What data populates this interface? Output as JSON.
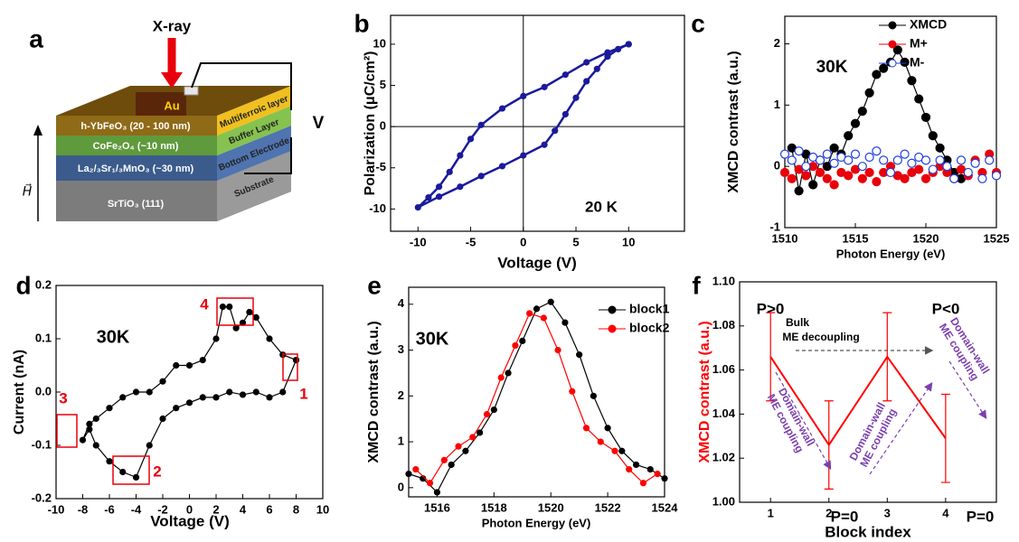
{
  "diagram": {
    "panel": "a",
    "xray": "X-ray",
    "pad": "Au",
    "voltage": "V",
    "field": "H⃗",
    "layers": [
      {
        "name": "h-YbFeO₃ (20 - 100 nm)",
        "role": "Multiferroic layer"
      },
      {
        "name": "CoFe₂O₄ (~10 nm)",
        "role": "Buffer Layer"
      },
      {
        "name": "La₂/₃Sr₁/₃MnO₃ (~30 nm)",
        "role": "Bottom Electrode"
      },
      {
        "name": "SrTiO₃ (111)",
        "role": "Substrate"
      }
    ]
  },
  "chart_data": [
    {
      "type": "line",
      "panel": "b",
      "xlabel": "Voltage (V)",
      "ylabel": "Polarization (μC/cm²)",
      "xlim": [
        -12.6,
        15.3
      ],
      "ylim": [
        -12.7,
        13.5
      ],
      "xticks": [
        -10,
        -5,
        0,
        5,
        10
      ],
      "yticks": [
        -10,
        -5,
        0,
        5,
        10
      ],
      "zero_lines": true,
      "annotations": [
        "20 K"
      ],
      "series": [
        {
          "name": "P-V loop",
          "color": "#1a1a9c",
          "marker": "filled",
          "connect": true,
          "x": [
            10,
            8,
            6,
            4,
            2,
            0,
            -2,
            -4,
            -5,
            -6,
            -7,
            -8,
            -9,
            -10,
            -8,
            -6,
            -4,
            -2,
            0,
            2,
            3,
            4,
            5,
            6,
            7,
            8,
            9,
            10
          ],
          "values": [
            10,
            9,
            7.8,
            6.3,
            4.8,
            3.7,
            2.2,
            0.2,
            -1.5,
            -3.5,
            -5.5,
            -7.3,
            -8.6,
            -9.8,
            -8.5,
            -7.3,
            -6,
            -4.8,
            -3.5,
            -2.2,
            -0.5,
            1.5,
            3.5,
            5.5,
            7,
            8.5,
            9.4,
            10
          ]
        }
      ]
    },
    {
      "type": "line",
      "panel": "c",
      "xlabel": "Photon Energy (eV)",
      "ylabel": "XMCD contrast (a.u.)",
      "xlim": [
        1510,
        1525
      ],
      "ylim": [
        -1,
        2.45
      ],
      "xticks": [
        1510,
        1515,
        1520,
        1525
      ],
      "yticks": [
        -1,
        0,
        1,
        2
      ],
      "legend": "upper right",
      "annotations": [
        "30K"
      ],
      "series": [
        {
          "name": "XMCD",
          "color": "#000000",
          "marker": "filled",
          "connect": true,
          "x": [
            1510.5,
            1511,
            1511.5,
            1512,
            1512.5,
            1513,
            1513.5,
            1514,
            1514.5,
            1515,
            1515.5,
            1516,
            1516.5,
            1517,
            1517.5,
            1518,
            1518.5,
            1519,
            1519.5,
            1520,
            1520.5,
            1521,
            1521.5,
            1522,
            1522.5
          ],
          "values": [
            0.3,
            -0.4,
            0.2,
            -0.3,
            0.1,
            0.0,
            0.3,
            0.2,
            0.5,
            0.7,
            0.9,
            1.2,
            1.5,
            1.6,
            1.7,
            1.9,
            1.7,
            1.4,
            1.1,
            0.8,
            0.5,
            0.3,
            0.1,
            -0.1,
            -0.2
          ]
        },
        {
          "name": "M+",
          "color": "#e8000b",
          "marker": "filled",
          "connect": false,
          "x": [
            1510,
            1510.5,
            1511,
            1511.5,
            1512,
            1512.5,
            1513,
            1513.5,
            1514,
            1514.5,
            1515,
            1515.5,
            1516,
            1516.5,
            1517,
            1517.5,
            1518,
            1518.5,
            1519,
            1519.5,
            1520,
            1520.5,
            1521,
            1521.5,
            1522,
            1522.5,
            1523,
            1523.5,
            1524,
            1524.5,
            1525
          ],
          "values": [
            -0.1,
            -0.2,
            -0.05,
            -0.15,
            0.0,
            -0.1,
            -0.2,
            -0.3,
            -0.1,
            -0.15,
            -0.05,
            -0.2,
            -0.1,
            -0.25,
            -0.1,
            0.0,
            -0.15,
            -0.2,
            -0.1,
            -0.05,
            -0.2,
            -0.1,
            0.0,
            -0.1,
            -0.2,
            -0.05,
            -0.15,
            0.1,
            -0.1,
            0.2,
            -0.1
          ]
        },
        {
          "name": "M-",
          "color": "#1f3fe0",
          "marker": "open",
          "connect": false,
          "x": [
            1510,
            1510.5,
            1511,
            1511.5,
            1512,
            1512.5,
            1513,
            1513.5,
            1514,
            1514.5,
            1515,
            1515.5,
            1516,
            1516.5,
            1517,
            1517.5,
            1518,
            1518.5,
            1519,
            1519.5,
            1520,
            1520.5,
            1521,
            1521.5,
            1522,
            1522.5,
            1523,
            1523.5,
            1524,
            1524.5,
            1525
          ],
          "values": [
            0.2,
            0.1,
            0.25,
            0.0,
            0.15,
            0.1,
            0.2,
            0.05,
            0.15,
            0.1,
            0.2,
            0.0,
            0.15,
            0.25,
            0.1,
            -0.1,
            0.1,
            0.2,
            0.05,
            0.15,
            0.1,
            -0.05,
            0.1,
            0.0,
            -0.2,
            0.1,
            -0.1,
            0.05,
            -0.2,
            0.1,
            -0.15
          ]
        }
      ]
    },
    {
      "type": "line",
      "panel": "d",
      "xlabel": "Voltage (V)",
      "ylabel": "Current (nA)",
      "xlim": [
        -10,
        10
      ],
      "ylim": [
        -0.2,
        0.2
      ],
      "xticks": [
        -10,
        -8,
        -6,
        -4,
        -2,
        0,
        2,
        4,
        6,
        8,
        10
      ],
      "yticks": [
        -0.2,
        -0.1,
        {
          "value": 0,
          "label": "0.0"
        },
        0.1,
        0.2
      ],
      "annotations": [
        "30K",
        "1",
        "2",
        "3",
        "4"
      ],
      "series": [
        {
          "name": "I-V",
          "color": "#000000",
          "marker": "filled",
          "connect": true,
          "x": [
            8,
            7,
            6,
            5,
            4,
            3,
            2,
            1,
            0,
            -1,
            -2,
            -3,
            -4,
            -5,
            -6,
            -7,
            -7.5,
            -8,
            -7.5,
            -7,
            -6,
            -5,
            -4,
            -3,
            -2,
            -1,
            0,
            1,
            2,
            2.5,
            3,
            3.5,
            4,
            4.5,
            5,
            6,
            7,
            8
          ],
          "values": [
            0.06,
            0.0,
            -0.01,
            0.0,
            -0.005,
            0.0,
            -0.01,
            -0.01,
            -0.02,
            -0.03,
            -0.05,
            -0.1,
            -0.16,
            -0.15,
            -0.13,
            -0.1,
            -0.07,
            -0.09,
            -0.06,
            -0.05,
            -0.03,
            -0.01,
            0.0,
            0.0,
            0.02,
            0.05,
            0.05,
            0.06,
            0.1,
            0.16,
            0.16,
            0.12,
            0.13,
            0.15,
            0.14,
            0.1,
            0.07,
            0.06
          ]
        }
      ]
    },
    {
      "type": "line",
      "panel": "e",
      "xlabel": "Photon Energy (eV)",
      "ylabel": "XMCD contrast (a.u.)",
      "xlim": [
        1515,
        1524
      ],
      "ylim": [
        -0.2,
        4.37
      ],
      "xticks": [
        1516,
        1518,
        1520,
        1522,
        1524
      ],
      "yticks": [
        0,
        1,
        2,
        3,
        4
      ],
      "legend": "upper right",
      "annotations": [
        "30K"
      ],
      "series": [
        {
          "name": "block1",
          "color": "#000000",
          "marker": "filled",
          "connect": true,
          "x": [
            1515,
            1515.5,
            1516,
            1516.5,
            1517,
            1517.5,
            1518,
            1518.5,
            1519,
            1519.5,
            1520,
            1520.5,
            1521,
            1521.5,
            1522,
            1522.5,
            1523,
            1523.5,
            1524
          ],
          "values": [
            0.3,
            0.2,
            -0.1,
            0.5,
            0.8,
            1.2,
            1.7,
            2.5,
            3.2,
            3.9,
            4.05,
            3.6,
            2.9,
            2.0,
            1.3,
            0.8,
            0.5,
            0.4,
            0.2
          ]
        },
        {
          "name": "block2",
          "color": "#ff0000",
          "marker": "filled",
          "connect": true,
          "x": [
            1515.25,
            1515.75,
            1516.25,
            1516.75,
            1517.25,
            1517.75,
            1518.25,
            1518.75,
            1519.25,
            1519.75,
            1520.25,
            1520.75,
            1521.25,
            1521.75,
            1522.25,
            1522.75,
            1523.25,
            1523.75
          ],
          "values": [
            0.4,
            0.1,
            0.6,
            0.9,
            1.1,
            1.6,
            2.4,
            3.1,
            3.8,
            3.7,
            3.0,
            2.1,
            1.3,
            1.0,
            0.8,
            0.4,
            0.1,
            0.3
          ]
        }
      ]
    },
    {
      "type": "errorbar",
      "panel": "f",
      "xlabel": "Block index",
      "ylabel": "XMCD contrast (a.u.)",
      "ylabel_color": "#ff0000",
      "xlim": [
        0.47,
        4.87
      ],
      "ylim": [
        1.0,
        1.1
      ],
      "xticks": [
        1,
        2,
        3,
        4
      ],
      "yticks": [
        {
          "value": 1.0,
          "label": "1.00"
        },
        {
          "value": 1.02,
          "label": "1.02"
        },
        {
          "value": 1.04,
          "label": "1.04"
        },
        {
          "value": 1.06,
          "label": "1.06"
        },
        {
          "value": 1.08,
          "label": "1.08"
        },
        {
          "value": 1.1,
          "label": "1.10"
        }
      ],
      "annotations": [
        "P>0",
        "P=0",
        "P<0",
        "P=0",
        "Bulk",
        "ME decoupling",
        "Domain-wall",
        "ME coupling",
        "Domain-wall",
        "ME coupling",
        "Domain-wall",
        "ME coupling"
      ],
      "x": [
        1,
        2,
        3,
        4
      ],
      "series": [
        {
          "name": "XMCD contrast",
          "color": "#ff0000",
          "values": [
            1.066,
            1.026,
            1.066,
            1.029
          ],
          "errors": [
            0.02,
            0.02,
            0.02,
            0.02
          ]
        }
      ]
    }
  ]
}
